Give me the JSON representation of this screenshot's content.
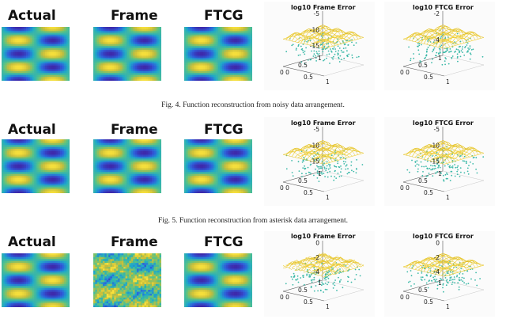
{
  "figures": [
    {
      "panels": [
        "Actual",
        "Frame",
        "FTCG"
      ],
      "frame_noisy": false,
      "plots": [
        {
          "title": "log10 Frame Error",
          "zticks": [
            "-5",
            "-10",
            "-15"
          ]
        },
        {
          "title": "log10 FTCG Error",
          "zticks": [
            "-2",
            "-4"
          ]
        }
      ],
      "xyticks": [
        "1",
        "0.5",
        "0 0",
        "0.5",
        "1"
      ],
      "caption": "Fig. 4.  Function reconstruction from noisy data arrangement."
    },
    {
      "panels": [
        "Actual",
        "Frame",
        "FTCG"
      ],
      "frame_noisy": false,
      "plots": [
        {
          "title": "log10 Frame Error",
          "zticks": [
            "-5",
            "-10",
            "-15"
          ]
        },
        {
          "title": "log10 FTCG Error",
          "zticks": [
            "-5",
            "-10",
            "-15"
          ]
        }
      ],
      "xyticks": [
        "1",
        "0.5",
        "0 0",
        "0.5",
        "1"
      ],
      "caption": "Fig. 5.  Function reconstruction from asterisk data arrangement."
    },
    {
      "panels": [
        "Actual",
        "Frame",
        "FTCG"
      ],
      "frame_noisy": true,
      "plots": [
        {
          "title": "log10 Frame Error",
          "zticks": [
            "0",
            "-2",
            "-4"
          ]
        },
        {
          "title": "log10 FTCG Error",
          "zticks": [
            "0",
            "-2",
            "-4"
          ]
        }
      ],
      "xyticks": [
        "1",
        "0.5",
        "0 0",
        "0.5",
        "1"
      ],
      "caption": ""
    }
  ],
  "colors": {
    "low": "#3e26a8",
    "mid": "#1ea9c9",
    "high": "#f9e13b",
    "surface": "#f2d23a",
    "scatter": "#3cb9a8"
  }
}
